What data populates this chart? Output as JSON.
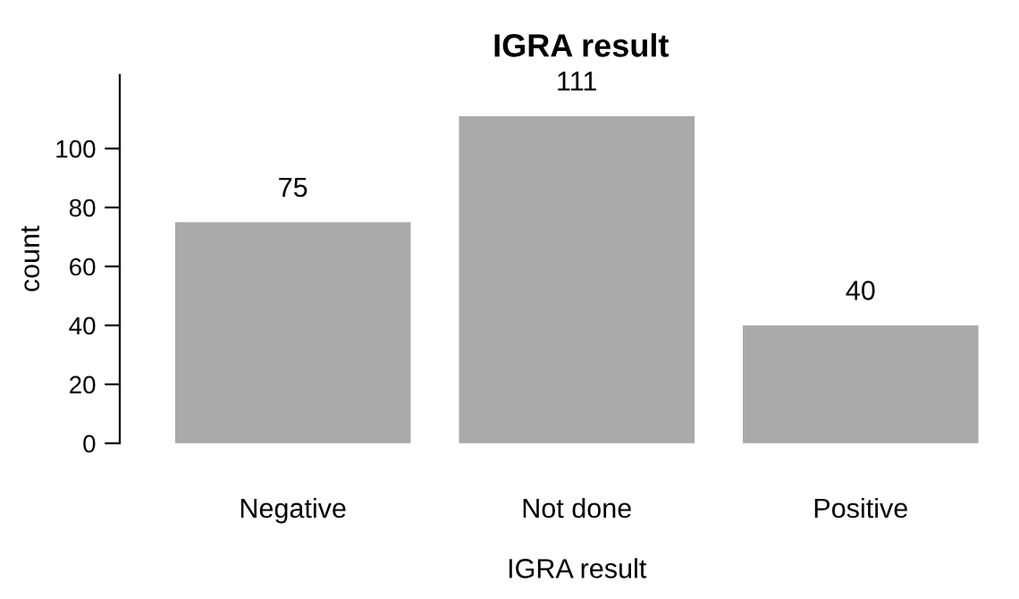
{
  "chart_data": {
    "type": "bar",
    "title": "IGRA result",
    "xlabel": "IGRA result",
    "ylabel": "count",
    "categories": [
      "Negative",
      "Not done",
      "Positive"
    ],
    "values": [
      75,
      111,
      40
    ],
    "color": "#aaaaaa",
    "ylim": [
      0,
      125
    ],
    "yticks": [
      0,
      20,
      40,
      60,
      80,
      100
    ],
    "data_labels": true,
    "grid": false,
    "legend": false
  }
}
